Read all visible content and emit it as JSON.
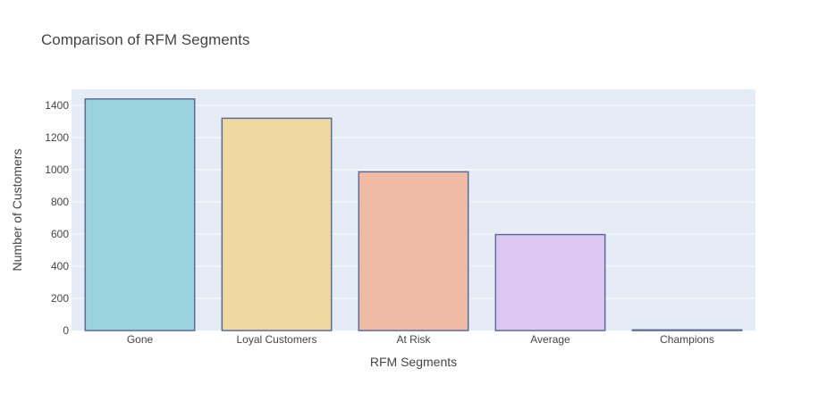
{
  "chart_data": {
    "type": "bar",
    "title": "Comparison of RFM Segments",
    "xlabel": "RFM Segments",
    "ylabel": "Number of Customers",
    "categories": [
      "Gone",
      "Loyal Customers",
      "At Risk",
      "Average",
      "Champions"
    ],
    "values": [
      1440,
      1320,
      987,
      597,
      4
    ],
    "ylim": [
      0,
      1500
    ],
    "yticks": [
      0,
      200,
      400,
      600,
      800,
      1000,
      1200,
      1400
    ],
    "grid": true,
    "legend": "none",
    "colors": {
      "bars": [
        "#9ad3dd",
        "#f0d9a0",
        "#f0bba4",
        "#dec6f2",
        "#d9d4f0"
      ],
      "bar_outline": "#5b6b9a",
      "plot_background": "#e5ecf6",
      "grid": "#ffffff"
    }
  }
}
